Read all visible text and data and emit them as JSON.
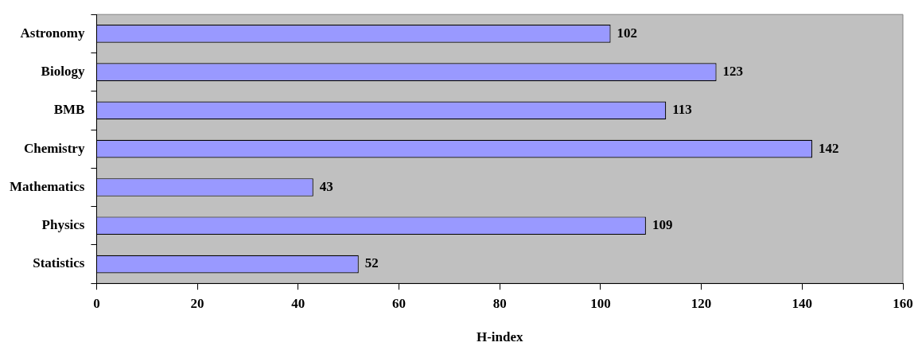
{
  "chart_data": {
    "type": "bar",
    "orientation": "horizontal",
    "xlabel": "H-index",
    "categories": [
      "Astronomy",
      "Biology",
      "BMB",
      "Chemistry",
      "Mathematics",
      "Physics",
      "Statistics"
    ],
    "values": [
      102,
      123,
      113,
      142,
      43,
      109,
      52
    ],
    "color": "#9999ff",
    "xlim": [
      0,
      160
    ],
    "xticks": [
      0,
      20,
      40,
      60,
      80,
      100,
      120,
      140,
      160
    ],
    "grid": false,
    "legend": false,
    "data_labels": true
  }
}
